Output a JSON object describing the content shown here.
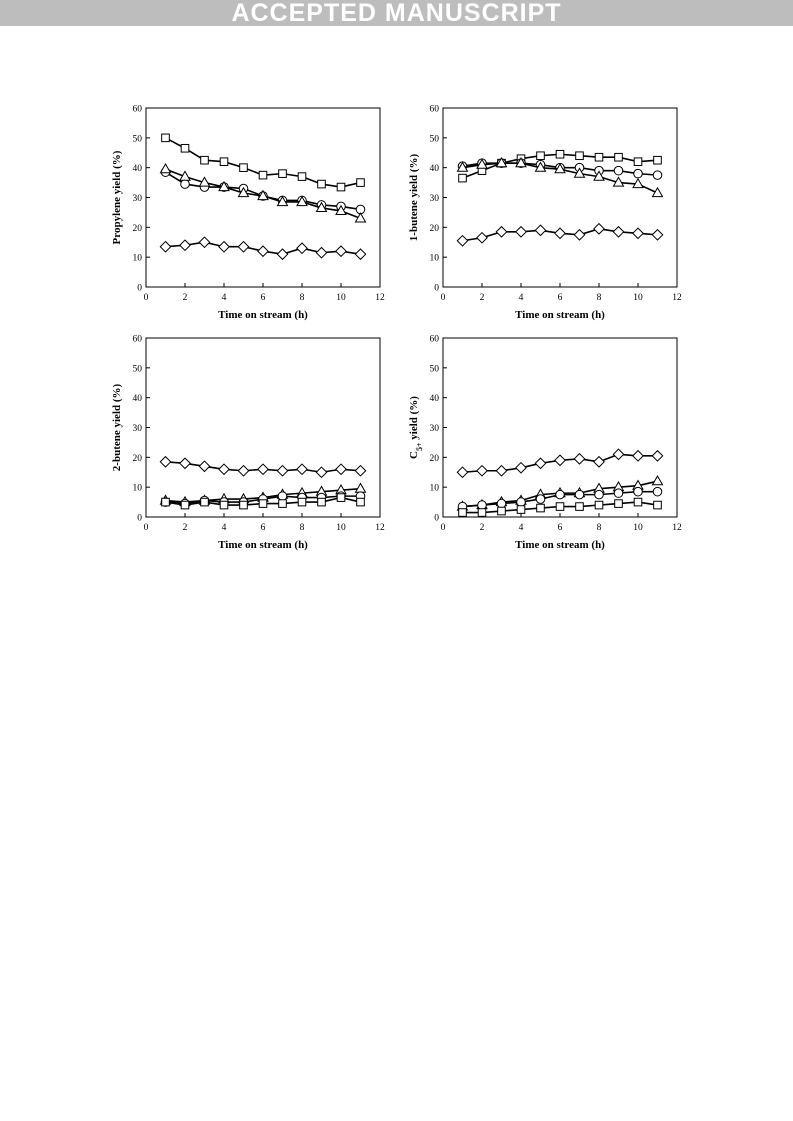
{
  "banner": {
    "text": "ACCEPTED MANUSCRIPT"
  },
  "chart_data": [
    {
      "type": "line",
      "xlabel": "Time on stream (h)",
      "ylabel": "Propylene yield (%)",
      "ylabel_parts": [
        {
          "t": "Propylene yield (%)",
          "sub": false
        }
      ],
      "xlim": [
        0,
        12
      ],
      "ylim": [
        0,
        60
      ],
      "xticks": [
        0,
        2,
        4,
        6,
        8,
        10,
        12
      ],
      "yticks": [
        0,
        10,
        20,
        30,
        40,
        50,
        60
      ],
      "grid": false,
      "x": [
        1,
        2,
        3,
        4,
        5,
        6,
        7,
        8,
        9,
        10,
        11
      ],
      "series": [
        {
          "marker": "square",
          "values": [
            50,
            46.5,
            42.5,
            42,
            40,
            37.5,
            38,
            37,
            34.5,
            33.5,
            35
          ]
        },
        {
          "marker": "circle",
          "values": [
            38.5,
            34.5,
            33.5,
            33.5,
            33,
            30.5,
            29,
            29,
            27.5,
            27,
            26
          ]
        },
        {
          "marker": "triangle",
          "values": [
            39.5,
            37,
            35,
            33.5,
            31.5,
            30.5,
            28.5,
            28.5,
            26.5,
            25.5,
            23
          ]
        },
        {
          "marker": "diamond",
          "values": [
            13.5,
            14,
            15,
            13.5,
            13.5,
            12,
            11,
            13,
            11.5,
            12,
            11
          ]
        }
      ]
    },
    {
      "type": "line",
      "xlabel": "Time on stream (h)",
      "ylabel": "1-butene yield (%)",
      "ylabel_parts": [
        {
          "t": "1-butene yield (%)",
          "sub": false
        }
      ],
      "xlim": [
        0,
        12
      ],
      "ylim": [
        0,
        60
      ],
      "xticks": [
        0,
        2,
        4,
        6,
        8,
        10,
        12
      ],
      "yticks": [
        0,
        10,
        20,
        30,
        40,
        50,
        60
      ],
      "grid": false,
      "x": [
        1,
        2,
        3,
        4,
        5,
        6,
        7,
        8,
        9,
        10,
        11
      ],
      "series": [
        {
          "marker": "square",
          "values": [
            36.5,
            39,
            41.5,
            43,
            44,
            44.5,
            44,
            43.5,
            43.5,
            42,
            42.5
          ]
        },
        {
          "marker": "circle",
          "values": [
            40.5,
            41.5,
            41.5,
            41.5,
            41,
            40,
            40,
            39,
            39,
            38,
            37.5
          ]
        },
        {
          "marker": "triangle",
          "values": [
            40,
            41,
            41.5,
            41.5,
            40,
            39.5,
            38,
            37,
            35,
            34.5,
            31.5
          ]
        },
        {
          "marker": "diamond",
          "values": [
            15.5,
            16.5,
            18.5,
            18.5,
            19,
            18,
            17.5,
            19.5,
            18.5,
            18,
            17.5
          ]
        }
      ]
    },
    {
      "type": "line",
      "xlabel": "Time on stream (h)",
      "ylabel": "2-butene yield (%)",
      "ylabel_parts": [
        {
          "t": "2-butene yield (%)",
          "sub": false
        }
      ],
      "xlim": [
        0,
        12
      ],
      "ylim": [
        0,
        60
      ],
      "xticks": [
        0,
        2,
        4,
        6,
        8,
        10,
        12
      ],
      "yticks": [
        0,
        10,
        20,
        30,
        40,
        50,
        60
      ],
      "grid": false,
      "x": [
        1,
        2,
        3,
        4,
        5,
        6,
        7,
        8,
        9,
        10,
        11
      ],
      "series": [
        {
          "marker": "diamond",
          "values": [
            18.5,
            18,
            17,
            16,
            15.5,
            16,
            15.5,
            16,
            15,
            16,
            15.5
          ]
        },
        {
          "marker": "triangle",
          "values": [
            5.5,
            5,
            5.5,
            6,
            6,
            6.5,
            7.5,
            8,
            8.5,
            9,
            9.5
          ]
        },
        {
          "marker": "circle",
          "values": [
            5,
            4.5,
            5.5,
            5,
            5,
            6,
            7,
            6.5,
            6.5,
            7,
            7
          ]
        },
        {
          "marker": "square",
          "values": [
            5,
            4,
            5,
            4,
            4,
            4.5,
            4.5,
            5,
            5,
            6.5,
            5
          ]
        }
      ]
    },
    {
      "type": "line",
      "xlabel": "Time on stream (h)",
      "ylabel": "C5+ yield (%)",
      "ylabel_parts": [
        {
          "t": "C",
          "sub": false
        },
        {
          "t": "5+",
          "sub": true
        },
        {
          "t": " yield (%)",
          "sub": false
        }
      ],
      "xlim": [
        0,
        12
      ],
      "ylim": [
        0,
        60
      ],
      "xticks": [
        0,
        2,
        4,
        6,
        8,
        10,
        12
      ],
      "yticks": [
        0,
        10,
        20,
        30,
        40,
        50,
        60
      ],
      "grid": false,
      "x": [
        1,
        2,
        3,
        4,
        5,
        6,
        7,
        8,
        9,
        10,
        11
      ],
      "series": [
        {
          "marker": "diamond",
          "values": [
            15,
            15.5,
            15.5,
            16.5,
            18,
            19,
            19.5,
            18.5,
            21,
            20.5,
            20.5
          ]
        },
        {
          "marker": "triangle",
          "values": [
            3.5,
            4,
            5,
            5.5,
            7.5,
            8,
            8,
            9.5,
            10,
            10.5,
            12
          ]
        },
        {
          "marker": "circle",
          "values": [
            3.5,
            4,
            4.5,
            5,
            6,
            7.5,
            7.5,
            7.5,
            8,
            8.5,
            8.5
          ]
        },
        {
          "marker": "square",
          "values": [
            1.5,
            1.5,
            2,
            2.5,
            3,
            3.5,
            3.5,
            4,
            4.5,
            5,
            4
          ]
        }
      ]
    }
  ]
}
